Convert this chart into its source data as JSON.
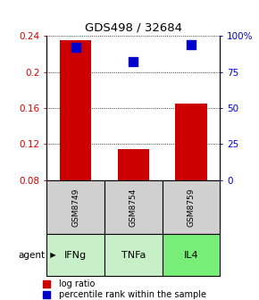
{
  "title": "GDS498 / 32684",
  "samples": [
    "GSM8749",
    "GSM8754",
    "GSM8759"
  ],
  "agents": [
    "IFNg",
    "TNFa",
    "IL4"
  ],
  "log_ratio": [
    0.235,
    0.114,
    0.165
  ],
  "percentile_rank": [
    92,
    82,
    94
  ],
  "ylim_left": [
    0.08,
    0.24
  ],
  "ylim_right": [
    0,
    100
  ],
  "yticks_left": [
    0.08,
    0.12,
    0.16,
    0.2,
    0.24
  ],
  "yticks_right": [
    0,
    25,
    50,
    75,
    100
  ],
  "bar_color": "#cc0000",
  "dot_color": "#0000cc",
  "gray_color": "#d0d0d0",
  "agent_colors": {
    "IFNg": "#c8f0c8",
    "TNFa": "#c8f0c8",
    "IL4": "#77ee77"
  },
  "left_label_color": "#cc0000",
  "right_label_color": "#0000cc",
  "bar_bottom": 0.08,
  "dot_size": 45,
  "bar_width": 0.55
}
